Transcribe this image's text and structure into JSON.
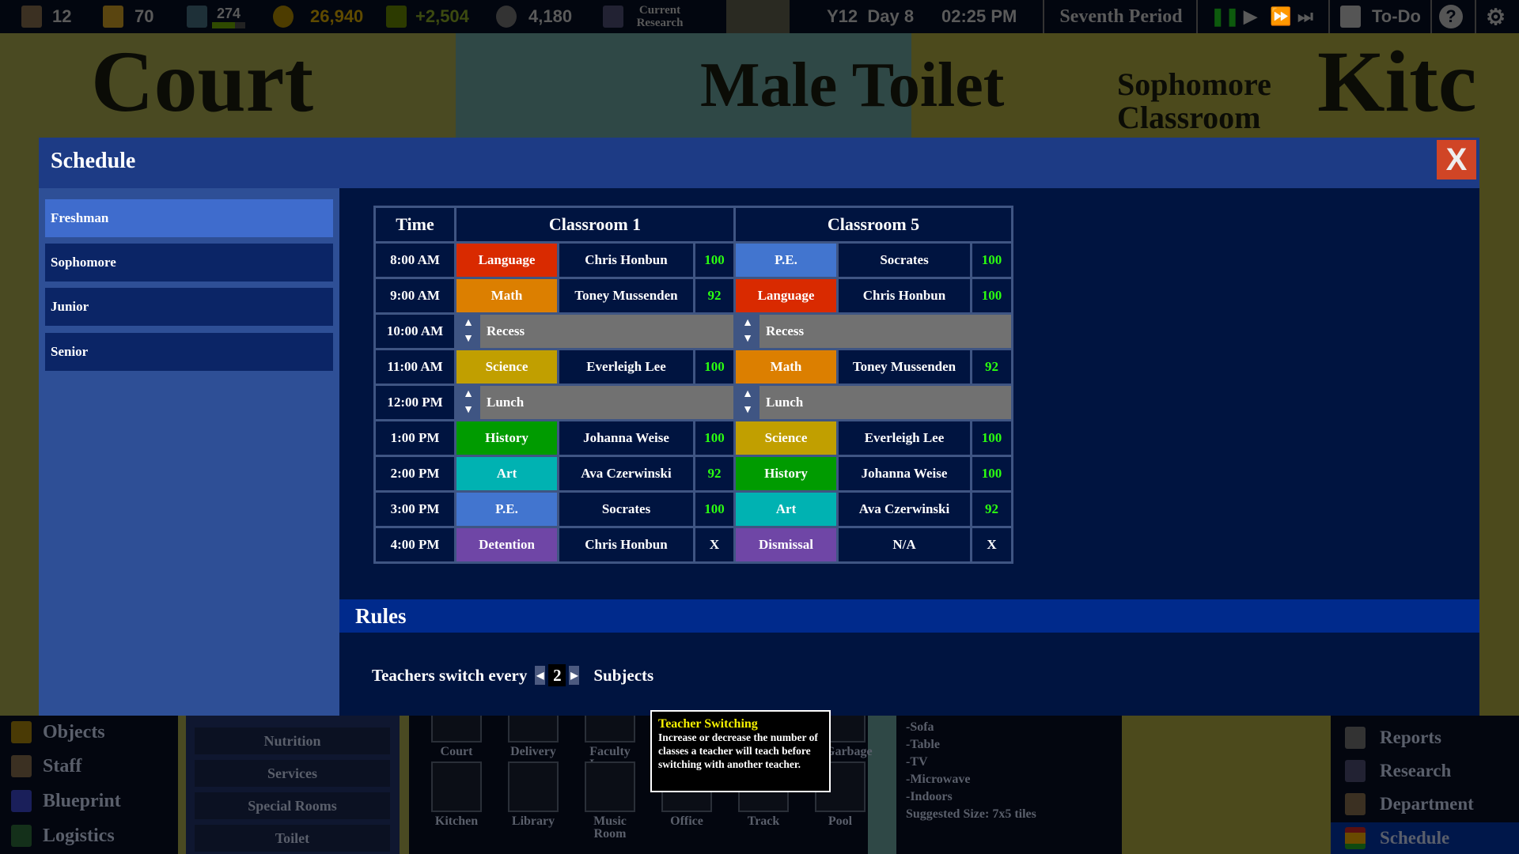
{
  "world_labels": [
    "Court",
    "Male Toilet",
    "Sophomore Classroom",
    "Kitc"
  ],
  "topbar": {
    "students": "12",
    "staff": "70",
    "reputation": "274",
    "reputation_progress": 0.7,
    "money": "26,940",
    "income": "+2,504",
    "points": "4,180",
    "research_label": "Current Research",
    "date": "Y12  Day 8",
    "time": "02:25 PM",
    "period": "Seventh Period",
    "todo": "To-Do",
    "speed": "paused"
  },
  "modal": {
    "title": "Schedule",
    "close": "X",
    "grades": [
      {
        "label": "Freshman",
        "selected": true
      },
      {
        "label": "Sophomore"
      },
      {
        "label": "Junior"
      },
      {
        "label": "Senior"
      }
    ],
    "columns": [
      "Time",
      "Classroom 1",
      "Classroom 5"
    ],
    "subject_colors": {
      "Language": "#d92a00",
      "Math": "#dc7f00",
      "Science": "#c19f00",
      "History": "#009b00",
      "Art": "#00b2b2",
      "P.E.": "#4275cf",
      "Detention": "#6f46a6",
      "Dismissal": "#6f46a6"
    },
    "rows": [
      {
        "time": "8:00 AM",
        "c1": [
          "Language",
          "Chris Honbun",
          "100"
        ],
        "c5": [
          "P.E.",
          "Socrates",
          "100"
        ]
      },
      {
        "time": "9:00 AM",
        "c1": [
          "Math",
          "Toney Mussenden",
          "92"
        ],
        "c5": [
          "Language",
          "Chris Honbun",
          "100"
        ]
      },
      {
        "time": "10:00 AM",
        "break": "Recess"
      },
      {
        "time": "11:00 AM",
        "c1": [
          "Science",
          "Everleigh Lee",
          "100"
        ],
        "c5": [
          "Math",
          "Toney Mussenden",
          "92"
        ]
      },
      {
        "time": "12:00 PM",
        "break": "Lunch"
      },
      {
        "time": "1:00 PM",
        "c1": [
          "History",
          "Johanna Weise",
          "100"
        ],
        "c5": [
          "Science",
          "Everleigh Lee",
          "100"
        ]
      },
      {
        "time": "2:00 PM",
        "c1": [
          "Art",
          "Ava Czerwinski",
          "92"
        ],
        "c5": [
          "History",
          "Johanna Weise",
          "100"
        ]
      },
      {
        "time": "3:00 PM",
        "c1": [
          "P.E.",
          "Socrates",
          "100"
        ],
        "c5": [
          "Art",
          "Ava Czerwinski",
          "92"
        ]
      },
      {
        "time": "4:00 PM",
        "c1": [
          "Detention",
          "Chris Honbun",
          "X"
        ],
        "c5": [
          "Dismissal",
          "N/A",
          "X"
        ]
      }
    ],
    "rules": {
      "title": "Rules",
      "prefix": "Teachers switch every",
      "value": "2",
      "suffix": "Subjects"
    }
  },
  "tooltip": {
    "title": "Teacher Switching",
    "body": "Increase or decrease the number of classes a teacher will teach before switching with another teacher."
  },
  "left_menu": [
    "Objects",
    "Staff",
    "Blueprint",
    "Logistics"
  ],
  "categories": [
    "Nutrition",
    "Services",
    "Special Rooms",
    "Toilet"
  ],
  "rooms": [
    [
      "Court",
      "Delivery",
      "Faculty Lounge",
      "",
      "",
      "Garbage"
    ],
    [
      "Kitchen",
      "Library",
      "Music Room",
      "Office",
      "Track",
      "Pool"
    ]
  ],
  "description": {
    "lines": [
      "-Sofa",
      "-Table",
      "-TV",
      "-Microwave",
      "-Indoors"
    ],
    "size": "Suggested Size: 7x5 tiles"
  },
  "right_menu": [
    "Reports",
    "Research",
    "Department",
    "Schedule"
  ]
}
